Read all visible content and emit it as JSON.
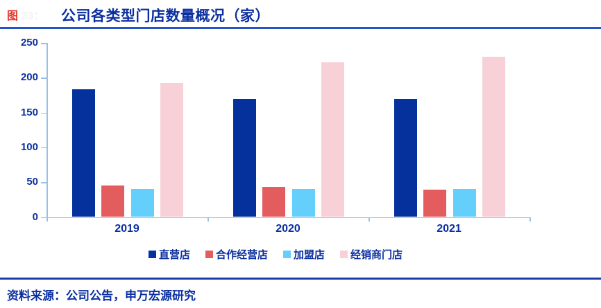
{
  "page": {
    "caption_prefix_red": "图",
    "caption_prefix_ghost": " 23：",
    "title": "公司各类型门店数量概况（家）",
    "source_note": "资料来源：公司公告，申万宏源研究"
  },
  "colors": {
    "navy_text": "#0b2fa0",
    "title_underline": "#2453c6",
    "footer_line": "#1c3ea8",
    "axis_line": "#97c1e8"
  },
  "chart_data": {
    "type": "bar",
    "title": "公司各类型门店数量概况（家）",
    "categories": [
      "2019",
      "2020",
      "2021"
    ],
    "series": [
      {
        "name": "直营店",
        "color": "#05319c",
        "values": [
          183,
          169,
          169
        ]
      },
      {
        "name": "合作经营店",
        "color": "#e35d5f",
        "values": [
          45,
          43,
          39
        ]
      },
      {
        "name": "加盟店",
        "color": "#63cffa",
        "values": [
          40,
          40,
          40
        ]
      },
      {
        "name": "经销商门店",
        "color": "#f7d1d7",
        "values": [
          192,
          222,
          230
        ]
      }
    ],
    "ylim": [
      0,
      250
    ],
    "ytick_step": 50,
    "xlabel": "",
    "ylabel": "",
    "grid": false,
    "legend_position": "bottom"
  }
}
